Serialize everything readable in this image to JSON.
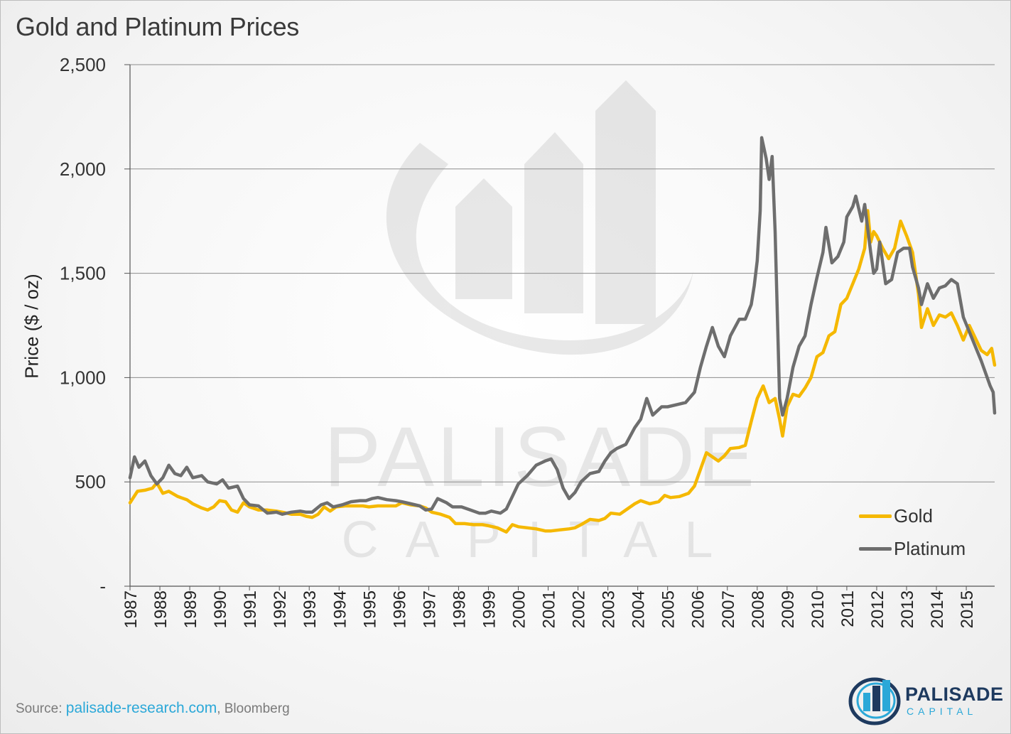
{
  "chart_data": {
    "type": "line",
    "title": "Gold and Platinum Prices",
    "ylabel": "Price ($ / oz)",
    "xlabel": "",
    "ylim": [
      0,
      2500
    ],
    "xlim": [
      1987,
      2015.95
    ],
    "y_ticks": [
      0,
      500,
      1000,
      1500,
      2000,
      2500
    ],
    "y_tick_labels": [
      "-",
      "500",
      "1,000",
      "1,500",
      "2,000",
      "2,500"
    ],
    "x_tick_labels": [
      "1987",
      "1988",
      "1989",
      "1990",
      "1991",
      "1992",
      "1993",
      "1994",
      "1995",
      "1996",
      "1997",
      "1998",
      "1999",
      "2000",
      "2001",
      "2002",
      "2003",
      "2004",
      "2005",
      "2006",
      "2007",
      "2008",
      "2009",
      "2010",
      "2011",
      "2012",
      "2013",
      "2014",
      "2015"
    ],
    "grid": "horizontal",
    "legend_position": "bottom-right",
    "series": [
      {
        "name": "Gold",
        "color": "#f5b800",
        "points": [
          [
            1987.0,
            400
          ],
          [
            1987.25,
            455
          ],
          [
            1987.5,
            460
          ],
          [
            1987.75,
            470
          ],
          [
            1987.9,
            495
          ],
          [
            1988.1,
            445
          ],
          [
            1988.3,
            455
          ],
          [
            1988.6,
            430
          ],
          [
            1988.9,
            415
          ],
          [
            1989.1,
            395
          ],
          [
            1989.4,
            375
          ],
          [
            1989.6,
            365
          ],
          [
            1989.8,
            380
          ],
          [
            1990.0,
            410
          ],
          [
            1990.2,
            405
          ],
          [
            1990.4,
            365
          ],
          [
            1990.6,
            355
          ],
          [
            1990.8,
            400
          ],
          [
            1991.0,
            380
          ],
          [
            1991.3,
            365
          ],
          [
            1991.6,
            365
          ],
          [
            1991.9,
            360
          ],
          [
            1992.1,
            355
          ],
          [
            1992.4,
            345
          ],
          [
            1992.7,
            345
          ],
          [
            1992.9,
            335
          ],
          [
            1993.1,
            330
          ],
          [
            1993.3,
            345
          ],
          [
            1993.5,
            380
          ],
          [
            1993.7,
            360
          ],
          [
            1993.9,
            380
          ],
          [
            1994.2,
            385
          ],
          [
            1994.5,
            385
          ],
          [
            1994.8,
            385
          ],
          [
            1995.0,
            380
          ],
          [
            1995.3,
            385
          ],
          [
            1995.6,
            385
          ],
          [
            1995.9,
            385
          ],
          [
            1996.1,
            400
          ],
          [
            1996.4,
            390
          ],
          [
            1996.7,
            385
          ],
          [
            1996.9,
            375
          ],
          [
            1997.1,
            355
          ],
          [
            1997.4,
            345
          ],
          [
            1997.7,
            330
          ],
          [
            1997.9,
            300
          ],
          [
            1998.2,
            300
          ],
          [
            1998.5,
            295
          ],
          [
            1998.8,
            295
          ],
          [
            1999.0,
            290
          ],
          [
            1999.3,
            280
          ],
          [
            1999.6,
            260
          ],
          [
            1999.8,
            295
          ],
          [
            2000.0,
            285
          ],
          [
            2000.3,
            280
          ],
          [
            2000.6,
            275
          ],
          [
            2000.9,
            265
          ],
          [
            2001.1,
            265
          ],
          [
            2001.4,
            270
          ],
          [
            2001.7,
            275
          ],
          [
            2001.9,
            280
          ],
          [
            2002.1,
            295
          ],
          [
            2002.4,
            320
          ],
          [
            2002.7,
            315
          ],
          [
            2002.9,
            325
          ],
          [
            2003.1,
            350
          ],
          [
            2003.4,
            345
          ],
          [
            2003.7,
            375
          ],
          [
            2003.9,
            395
          ],
          [
            2004.1,
            410
          ],
          [
            2004.4,
            395
          ],
          [
            2004.7,
            405
          ],
          [
            2004.9,
            435
          ],
          [
            2005.1,
            425
          ],
          [
            2005.4,
            430
          ],
          [
            2005.7,
            445
          ],
          [
            2005.9,
            480
          ],
          [
            2006.1,
            560
          ],
          [
            2006.3,
            640
          ],
          [
            2006.5,
            620
          ],
          [
            2006.7,
            600
          ],
          [
            2006.9,
            625
          ],
          [
            2007.1,
            660
          ],
          [
            2007.4,
            665
          ],
          [
            2007.6,
            675
          ],
          [
            2007.8,
            790
          ],
          [
            2008.0,
            900
          ],
          [
            2008.2,
            960
          ],
          [
            2008.4,
            880
          ],
          [
            2008.6,
            900
          ],
          [
            2008.75,
            800
          ],
          [
            2008.85,
            720
          ],
          [
            2009.0,
            860
          ],
          [
            2009.2,
            920
          ],
          [
            2009.4,
            910
          ],
          [
            2009.6,
            950
          ],
          [
            2009.8,
            1000
          ],
          [
            2010.0,
            1100
          ],
          [
            2010.2,
            1120
          ],
          [
            2010.4,
            1200
          ],
          [
            2010.6,
            1220
          ],
          [
            2010.8,
            1350
          ],
          [
            2011.0,
            1380
          ],
          [
            2011.2,
            1450
          ],
          [
            2011.4,
            1520
          ],
          [
            2011.6,
            1620
          ],
          [
            2011.7,
            1800
          ],
          [
            2011.8,
            1650
          ],
          [
            2011.9,
            1700
          ],
          [
            2012.0,
            1680
          ],
          [
            2012.2,
            1620
          ],
          [
            2012.4,
            1570
          ],
          [
            2012.6,
            1620
          ],
          [
            2012.8,
            1750
          ],
          [
            2013.0,
            1680
          ],
          [
            2013.2,
            1600
          ],
          [
            2013.4,
            1400
          ],
          [
            2013.5,
            1240
          ],
          [
            2013.7,
            1330
          ],
          [
            2013.9,
            1250
          ],
          [
            2014.1,
            1300
          ],
          [
            2014.3,
            1290
          ],
          [
            2014.5,
            1310
          ],
          [
            2014.7,
            1250
          ],
          [
            2014.9,
            1180
          ],
          [
            2015.1,
            1250
          ],
          [
            2015.3,
            1190
          ],
          [
            2015.5,
            1130
          ],
          [
            2015.7,
            1110
          ],
          [
            2015.85,
            1140
          ],
          [
            2015.95,
            1060
          ]
        ]
      },
      {
        "name": "Platinum",
        "color": "#6e6e6e",
        "points": [
          [
            1987.0,
            520
          ],
          [
            1987.15,
            620
          ],
          [
            1987.3,
            570
          ],
          [
            1987.5,
            600
          ],
          [
            1987.7,
            530
          ],
          [
            1987.9,
            490
          ],
          [
            1988.1,
            520
          ],
          [
            1988.3,
            580
          ],
          [
            1988.5,
            540
          ],
          [
            1988.7,
            530
          ],
          [
            1988.9,
            570
          ],
          [
            1989.1,
            520
          ],
          [
            1989.4,
            530
          ],
          [
            1989.6,
            500
          ],
          [
            1989.9,
            490
          ],
          [
            1990.1,
            510
          ],
          [
            1990.3,
            470
          ],
          [
            1990.6,
            480
          ],
          [
            1990.8,
            420
          ],
          [
            1991.0,
            390
          ],
          [
            1991.3,
            385
          ],
          [
            1991.6,
            350
          ],
          [
            1991.9,
            355
          ],
          [
            1992.1,
            345
          ],
          [
            1992.4,
            355
          ],
          [
            1992.7,
            360
          ],
          [
            1992.9,
            355
          ],
          [
            1993.1,
            355
          ],
          [
            1993.4,
            390
          ],
          [
            1993.6,
            400
          ],
          [
            1993.8,
            380
          ],
          [
            1994.1,
            390
          ],
          [
            1994.4,
            405
          ],
          [
            1994.7,
            410
          ],
          [
            1994.9,
            410
          ],
          [
            1995.1,
            420
          ],
          [
            1995.3,
            425
          ],
          [
            1995.6,
            415
          ],
          [
            1995.9,
            410
          ],
          [
            1996.1,
            405
          ],
          [
            1996.4,
            395
          ],
          [
            1996.7,
            385
          ],
          [
            1996.9,
            365
          ],
          [
            1997.1,
            370
          ],
          [
            1997.3,
            420
          ],
          [
            1997.6,
            400
          ],
          [
            1997.8,
            380
          ],
          [
            1998.1,
            380
          ],
          [
            1998.4,
            365
          ],
          [
            1998.7,
            350
          ],
          [
            1998.9,
            350
          ],
          [
            1999.1,
            360
          ],
          [
            1999.4,
            350
          ],
          [
            1999.6,
            370
          ],
          [
            1999.8,
            430
          ],
          [
            2000.0,
            490
          ],
          [
            2000.3,
            530
          ],
          [
            2000.6,
            580
          ],
          [
            2000.9,
            600
          ],
          [
            2001.1,
            610
          ],
          [
            2001.3,
            560
          ],
          [
            2001.5,
            470
          ],
          [
            2001.7,
            420
          ],
          [
            2001.9,
            450
          ],
          [
            2002.1,
            500
          ],
          [
            2002.4,
            540
          ],
          [
            2002.7,
            550
          ],
          [
            2002.9,
            600
          ],
          [
            2003.1,
            640
          ],
          [
            2003.3,
            660
          ],
          [
            2003.6,
            680
          ],
          [
            2003.9,
            760
          ],
          [
            2004.1,
            800
          ],
          [
            2004.3,
            900
          ],
          [
            2004.5,
            820
          ],
          [
            2004.8,
            860
          ],
          [
            2005.0,
            860
          ],
          [
            2005.3,
            870
          ],
          [
            2005.6,
            880
          ],
          [
            2005.9,
            930
          ],
          [
            2006.1,
            1050
          ],
          [
            2006.3,
            1150
          ],
          [
            2006.5,
            1240
          ],
          [
            2006.7,
            1150
          ],
          [
            2006.9,
            1100
          ],
          [
            2007.1,
            1200
          ],
          [
            2007.4,
            1280
          ],
          [
            2007.6,
            1280
          ],
          [
            2007.8,
            1350
          ],
          [
            2007.9,
            1440
          ],
          [
            2008.0,
            1560
          ],
          [
            2008.1,
            1800
          ],
          [
            2008.15,
            2150
          ],
          [
            2008.3,
            2050
          ],
          [
            2008.4,
            1950
          ],
          [
            2008.5,
            2060
          ],
          [
            2008.6,
            1700
          ],
          [
            2008.75,
            900
          ],
          [
            2008.85,
            820
          ],
          [
            2009.0,
            900
          ],
          [
            2009.2,
            1050
          ],
          [
            2009.4,
            1150
          ],
          [
            2009.6,
            1200
          ],
          [
            2009.8,
            1350
          ],
          [
            2010.0,
            1480
          ],
          [
            2010.2,
            1600
          ],
          [
            2010.3,
            1720
          ],
          [
            2010.5,
            1550
          ],
          [
            2010.7,
            1580
          ],
          [
            2010.9,
            1650
          ],
          [
            2011.0,
            1770
          ],
          [
            2011.2,
            1820
          ],
          [
            2011.3,
            1870
          ],
          [
            2011.5,
            1750
          ],
          [
            2011.6,
            1830
          ],
          [
            2011.8,
            1600
          ],
          [
            2011.9,
            1500
          ],
          [
            2012.0,
            1520
          ],
          [
            2012.1,
            1650
          ],
          [
            2012.3,
            1450
          ],
          [
            2012.5,
            1470
          ],
          [
            2012.7,
            1600
          ],
          [
            2012.9,
            1620
          ],
          [
            2013.1,
            1620
          ],
          [
            2013.2,
            1530
          ],
          [
            2013.4,
            1430
          ],
          [
            2013.5,
            1350
          ],
          [
            2013.7,
            1450
          ],
          [
            2013.9,
            1380
          ],
          [
            2014.1,
            1430
          ],
          [
            2014.3,
            1440
          ],
          [
            2014.5,
            1470
          ],
          [
            2014.7,
            1450
          ],
          [
            2014.9,
            1290
          ],
          [
            2015.1,
            1220
          ],
          [
            2015.3,
            1150
          ],
          [
            2015.5,
            1080
          ],
          [
            2015.7,
            1000
          ],
          [
            2015.8,
            960
          ],
          [
            2015.9,
            930
          ],
          [
            2015.95,
            830
          ]
        ]
      }
    ]
  },
  "footer": {
    "source_prefix": "Source: ",
    "source_link": "palisade-research.com",
    "source_suffix": ", Bloomberg"
  },
  "logo": {
    "name": "PALISADE",
    "sub": "CAPITAL"
  },
  "watermark": {
    "line1": "PALISADE",
    "line2": "CAPITAL"
  }
}
